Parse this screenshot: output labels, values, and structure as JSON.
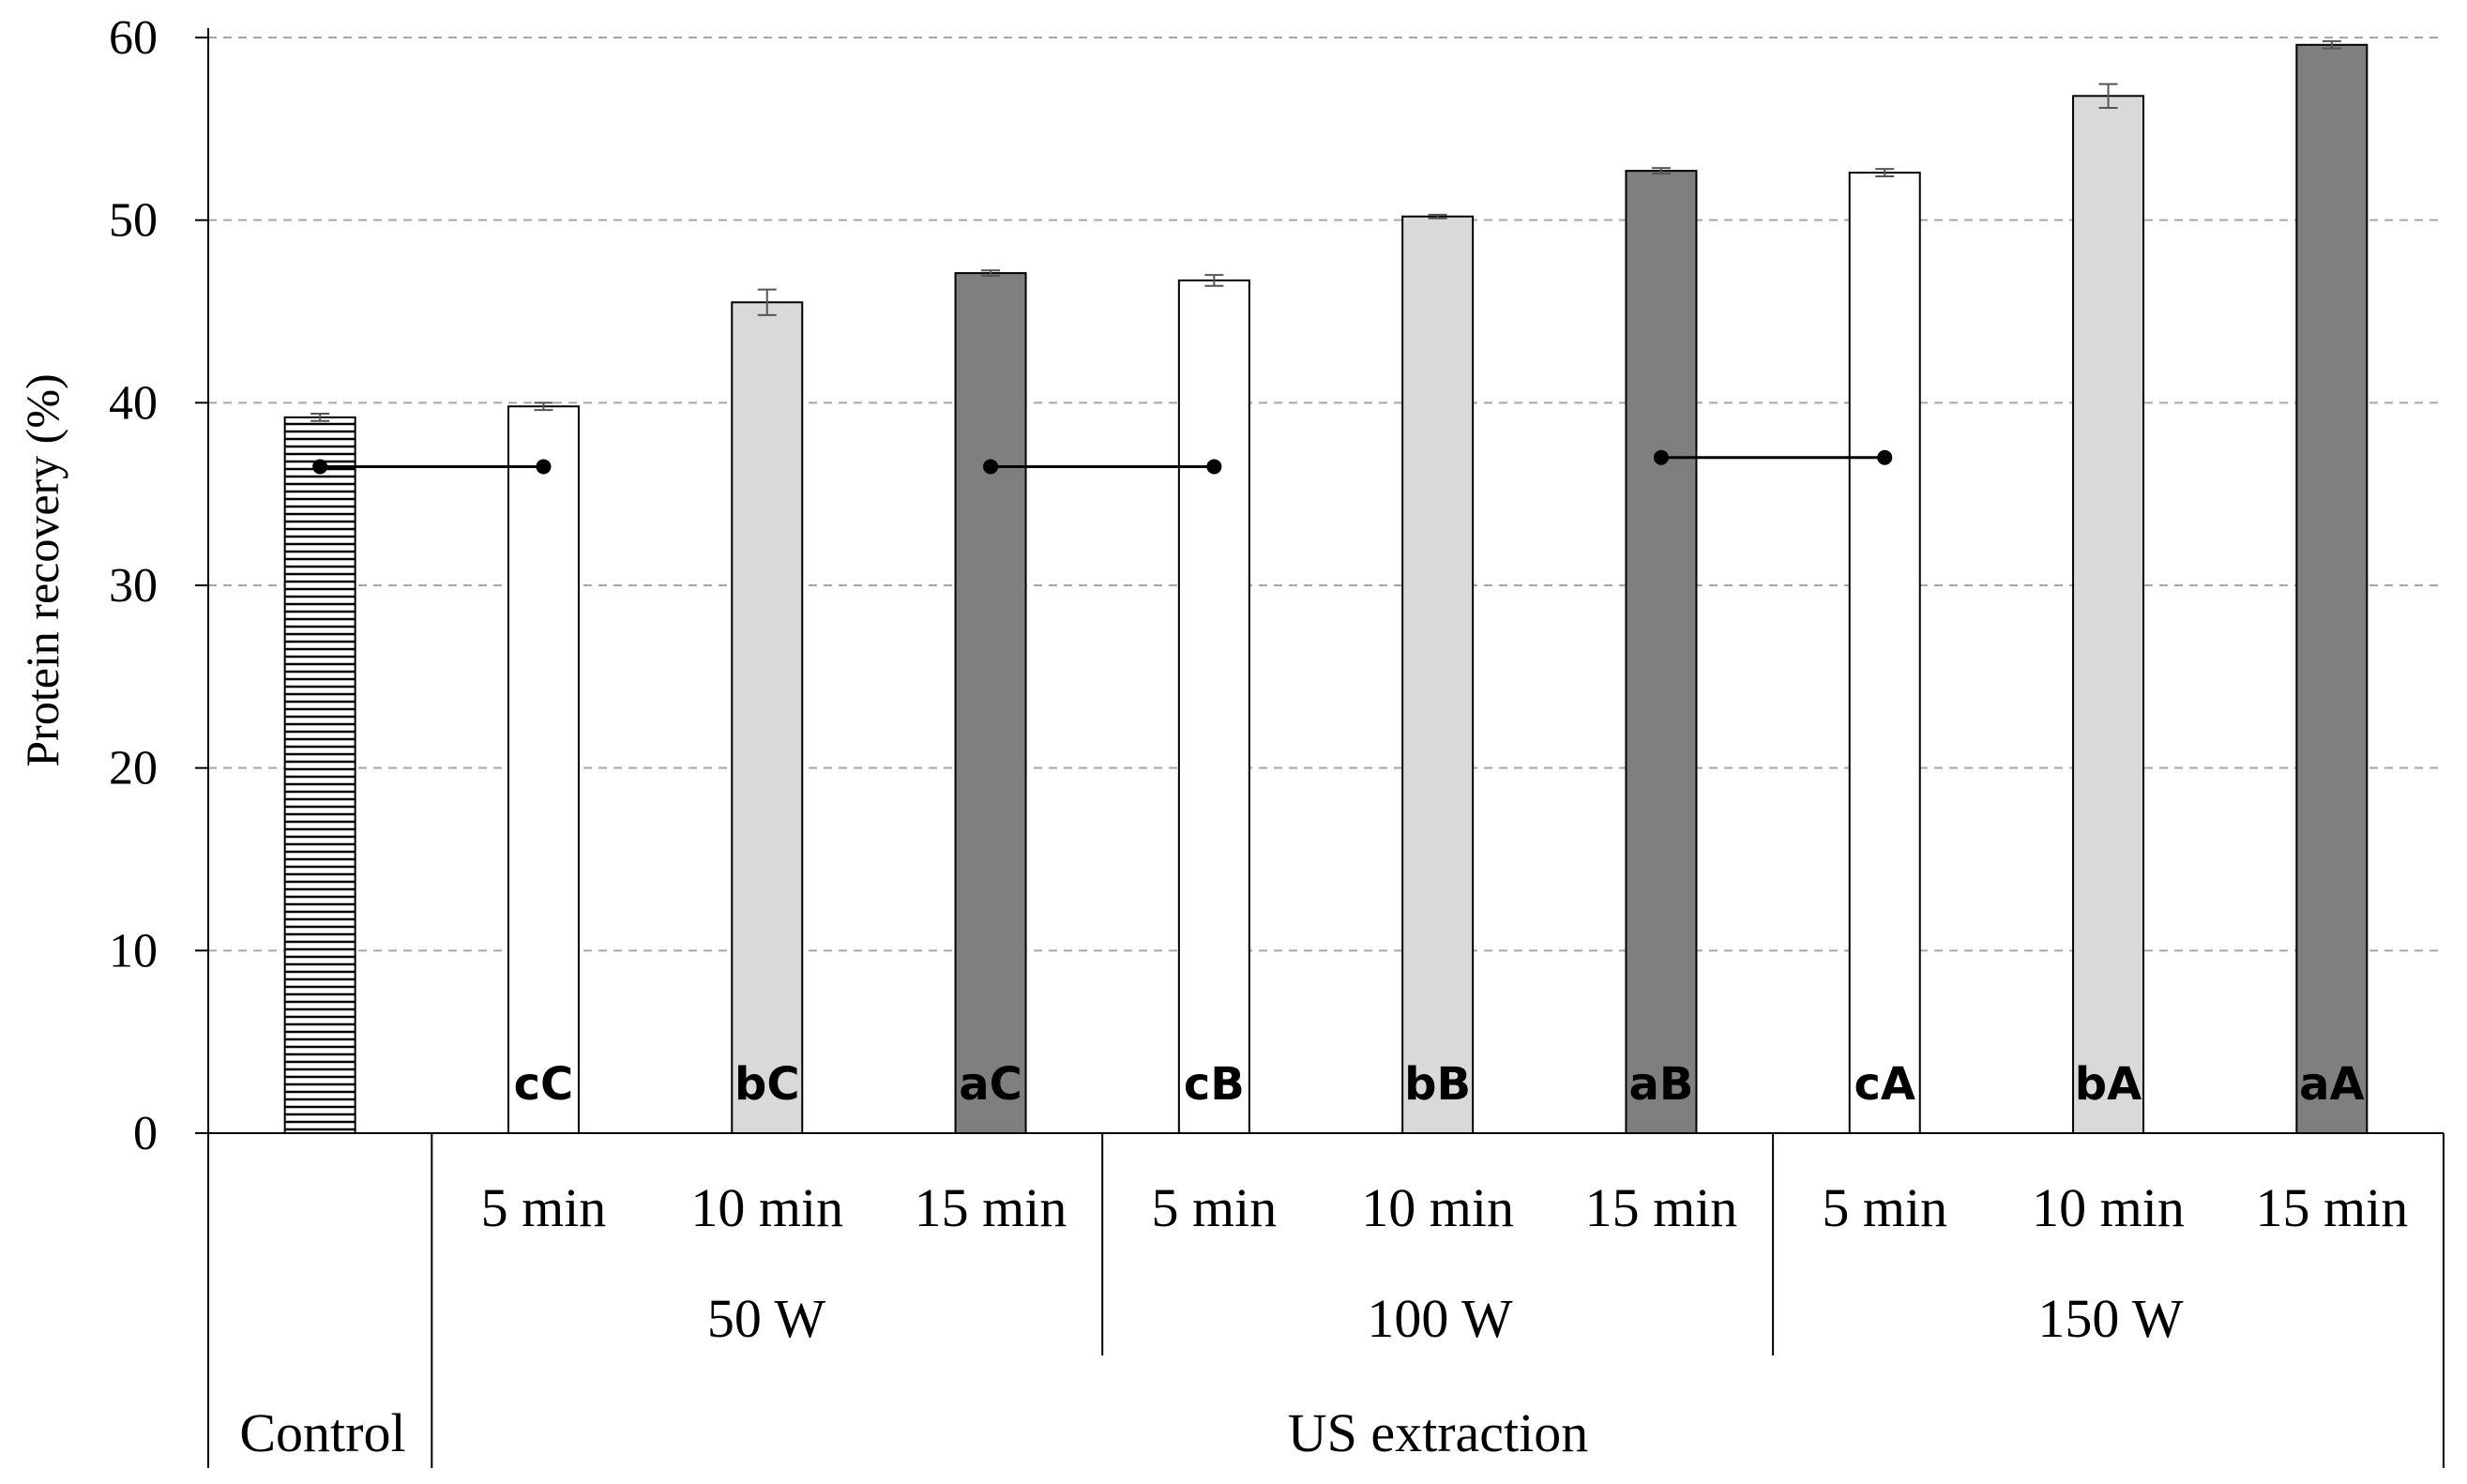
{
  "chart_data": {
    "type": "bar",
    "ylabel": "Protein recovery (%)",
    "ylim": [
      0,
      60
    ],
    "yticks": [
      0,
      10,
      20,
      30,
      40,
      50,
      60
    ],
    "grid": "horizontal dashed",
    "bars": [
      {
        "id": "control",
        "time_label": "",
        "value": 39.2,
        "error": 0.2,
        "letters": "",
        "fill": "hatch",
        "group": "Control"
      },
      {
        "id": "50w-5",
        "time_label": "5 min",
        "value": 39.8,
        "error": 0.2,
        "letters": "cC",
        "fill": "#ffffff",
        "group": "50 W"
      },
      {
        "id": "50w-10",
        "time_label": "10 min",
        "value": 45.5,
        "error": 0.7,
        "letters": "bC",
        "fill": "#d9d9d9",
        "group": "50 W"
      },
      {
        "id": "50w-15",
        "time_label": "15 min",
        "value": 47.1,
        "error": 0.15,
        "letters": "aC",
        "fill": "#7f7f7f",
        "group": "50 W"
      },
      {
        "id": "100w-5",
        "time_label": "5 min",
        "value": 46.7,
        "error": 0.3,
        "letters": "cB",
        "fill": "#ffffff",
        "group": "100 W"
      },
      {
        "id": "100w-10",
        "time_label": "10 min",
        "value": 50.2,
        "error": 0.1,
        "letters": "bB",
        "fill": "#d9d9d9",
        "group": "100 W"
      },
      {
        "id": "100w-15",
        "time_label": "15 min",
        "value": 52.7,
        "error": 0.15,
        "letters": "aB",
        "fill": "#7f7f7f",
        "group": "100 W"
      },
      {
        "id": "150w-5",
        "time_label": "5 min",
        "value": 52.6,
        "error": 0.2,
        "letters": "cA",
        "fill": "#ffffff",
        "group": "150 W"
      },
      {
        "id": "150w-10",
        "time_label": "10 min",
        "value": 56.8,
        "error": 0.65,
        "letters": "bA",
        "fill": "#d9d9d9",
        "group": "150 W"
      },
      {
        "id": "150w-15",
        "time_label": "15 min",
        "value": 59.6,
        "error": 0.2,
        "letters": "aA",
        "fill": "#7f7f7f",
        "group": "150 W"
      }
    ],
    "power_groups": [
      "50 W",
      "100 W",
      "150 W"
    ],
    "category_labels": {
      "control": "Control",
      "treatment": "US extraction"
    },
    "comparison_lines": [
      {
        "from": 0,
        "to": 1,
        "y": 36.5
      },
      {
        "from": 3,
        "to": 4,
        "y": 36.5
      },
      {
        "from": 6,
        "to": 7,
        "y": 37.0
      }
    ]
  }
}
